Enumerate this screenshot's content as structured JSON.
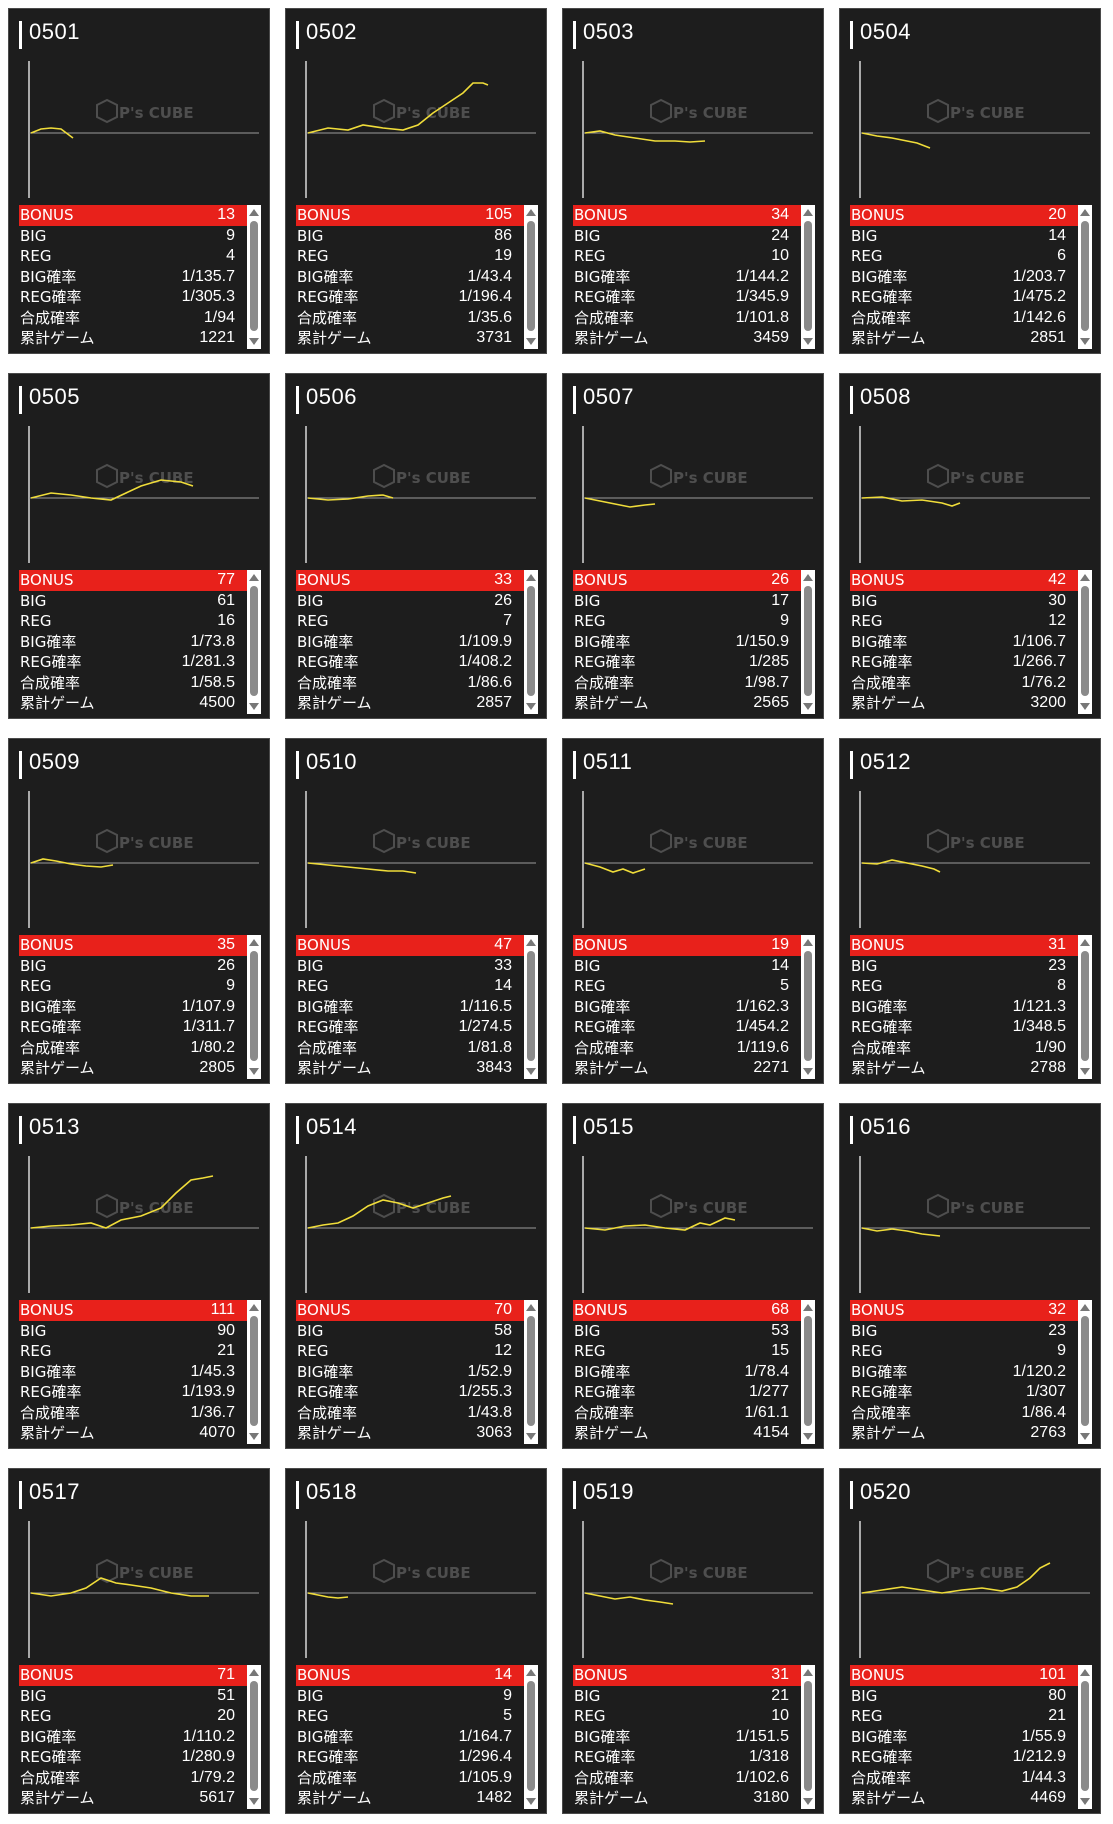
{
  "labels": {
    "bonus": "BONUS",
    "big": "BIG",
    "reg": "REG",
    "big_rate": "BIG確率",
    "reg_rate": "REG確率",
    "combined_rate": "合成確率",
    "total_games": "累計ゲーム"
  },
  "watermark": "P's CUBE",
  "colors": {
    "bonus_bar": "#e8211b",
    "line": "#f0dd3a",
    "card_bg": "#1d1d1d"
  },
  "machines": [
    {
      "id": "0501",
      "bonus": "13",
      "big": "9",
      "reg": "4",
      "big_rate": "1/135.7",
      "reg_rate": "1/305.3",
      "combined_rate": "1/94",
      "total_games": "1221",
      "trend": [
        [
          0,
          0
        ],
        [
          10,
          4
        ],
        [
          20,
          5
        ],
        [
          30,
          4
        ],
        [
          38,
          -2
        ],
        [
          42,
          -5
        ]
      ]
    },
    {
      "id": "0502",
      "bonus": "105",
      "big": "86",
      "reg": "19",
      "big_rate": "1/43.4",
      "reg_rate": "1/196.4",
      "combined_rate": "1/35.6",
      "total_games": "3731",
      "trend": [
        [
          0,
          0
        ],
        [
          20,
          5
        ],
        [
          40,
          3
        ],
        [
          55,
          8
        ],
        [
          75,
          5
        ],
        [
          95,
          3
        ],
        [
          110,
          8
        ],
        [
          125,
          20
        ],
        [
          140,
          30
        ],
        [
          155,
          40
        ],
        [
          165,
          50
        ],
        [
          175,
          50
        ],
        [
          180,
          48
        ]
      ]
    },
    {
      "id": "0503",
      "bonus": "34",
      "big": "24",
      "reg": "10",
      "big_rate": "1/144.2",
      "reg_rate": "1/345.9",
      "combined_rate": "1/101.8",
      "total_games": "3459",
      "trend": [
        [
          0,
          0
        ],
        [
          15,
          2
        ],
        [
          30,
          -2
        ],
        [
          50,
          -5
        ],
        [
          70,
          -8
        ],
        [
          90,
          -8
        ],
        [
          105,
          -9
        ],
        [
          120,
          -8
        ]
      ]
    },
    {
      "id": "0504",
      "bonus": "20",
      "big": "14",
      "reg": "6",
      "big_rate": "1/203.7",
      "reg_rate": "1/475.2",
      "combined_rate": "1/142.6",
      "total_games": "2851",
      "trend": [
        [
          0,
          0
        ],
        [
          15,
          -3
        ],
        [
          30,
          -5
        ],
        [
          45,
          -8
        ],
        [
          55,
          -10
        ],
        [
          68,
          -15
        ]
      ]
    },
    {
      "id": "0505",
      "bonus": "77",
      "big": "61",
      "reg": "16",
      "big_rate": "1/73.8",
      "reg_rate": "1/281.3",
      "combined_rate": "1/58.5",
      "total_games": "4500",
      "trend": [
        [
          0,
          0
        ],
        [
          20,
          5
        ],
        [
          40,
          3
        ],
        [
          60,
          0
        ],
        [
          80,
          -2
        ],
        [
          95,
          5
        ],
        [
          110,
          12
        ],
        [
          130,
          18
        ],
        [
          150,
          16
        ],
        [
          162,
          12
        ]
      ]
    },
    {
      "id": "0506",
      "bonus": "33",
      "big": "26",
      "reg": "7",
      "big_rate": "1/109.9",
      "reg_rate": "1/408.2",
      "combined_rate": "1/86.6",
      "total_games": "2857",
      "trend": [
        [
          0,
          0
        ],
        [
          20,
          -2
        ],
        [
          40,
          -1
        ],
        [
          60,
          2
        ],
        [
          75,
          3
        ],
        [
          85,
          0
        ]
      ]
    },
    {
      "id": "0507",
      "bonus": "26",
      "big": "17",
      "reg": "9",
      "big_rate": "1/150.9",
      "reg_rate": "1/285",
      "combined_rate": "1/98.7",
      "total_games": "2565",
      "trend": [
        [
          0,
          0
        ],
        [
          15,
          -3
        ],
        [
          30,
          -6
        ],
        [
          45,
          -9
        ],
        [
          60,
          -7
        ],
        [
          70,
          -6
        ]
      ]
    },
    {
      "id": "0508",
      "bonus": "42",
      "big": "30",
      "reg": "12",
      "big_rate": "1/106.7",
      "reg_rate": "1/266.7",
      "combined_rate": "1/76.2",
      "total_games": "3200",
      "trend": [
        [
          0,
          0
        ],
        [
          20,
          1
        ],
        [
          40,
          -3
        ],
        [
          60,
          -2
        ],
        [
          80,
          -5
        ],
        [
          90,
          -8
        ],
        [
          98,
          -5
        ]
      ]
    },
    {
      "id": "0509",
      "bonus": "35",
      "big": "26",
      "reg": "9",
      "big_rate": "1/107.9",
      "reg_rate": "1/311.7",
      "combined_rate": "1/80.2",
      "total_games": "2805",
      "trend": [
        [
          0,
          0
        ],
        [
          12,
          4
        ],
        [
          25,
          2
        ],
        [
          40,
          -1
        ],
        [
          55,
          -3
        ],
        [
          70,
          -4
        ],
        [
          82,
          -2
        ]
      ]
    },
    {
      "id": "0510",
      "bonus": "47",
      "big": "33",
      "reg": "14",
      "big_rate": "1/116.5",
      "reg_rate": "1/274.5",
      "combined_rate": "1/81.8",
      "total_games": "3843",
      "trend": [
        [
          0,
          0
        ],
        [
          20,
          -2
        ],
        [
          40,
          -4
        ],
        [
          60,
          -6
        ],
        [
          80,
          -8
        ],
        [
          95,
          -8
        ],
        [
          108,
          -10
        ]
      ]
    },
    {
      "id": "0511",
      "bonus": "19",
      "big": "14",
      "reg": "5",
      "big_rate": "1/162.3",
      "reg_rate": "1/454.2",
      "combined_rate": "1/119.6",
      "total_games": "2271",
      "trend": [
        [
          0,
          0
        ],
        [
          15,
          -4
        ],
        [
          28,
          -9
        ],
        [
          38,
          -6
        ],
        [
          48,
          -10
        ],
        [
          60,
          -6
        ]
      ]
    },
    {
      "id": "0512",
      "bonus": "31",
      "big": "23",
      "reg": "8",
      "big_rate": "1/121.3",
      "reg_rate": "1/348.5",
      "combined_rate": "1/90",
      "total_games": "2788",
      "trend": [
        [
          0,
          0
        ],
        [
          15,
          -1
        ],
        [
          30,
          3
        ],
        [
          45,
          0
        ],
        [
          60,
          -3
        ],
        [
          72,
          -6
        ],
        [
          78,
          -9
        ]
      ]
    },
    {
      "id": "0513",
      "bonus": "111",
      "big": "90",
      "reg": "21",
      "big_rate": "1/45.3",
      "reg_rate": "1/193.9",
      "combined_rate": "1/36.7",
      "total_games": "4070",
      "trend": [
        [
          0,
          0
        ],
        [
          20,
          2
        ],
        [
          40,
          3
        ],
        [
          60,
          5
        ],
        [
          75,
          0
        ],
        [
          90,
          8
        ],
        [
          110,
          12
        ],
        [
          130,
          20
        ],
        [
          145,
          35
        ],
        [
          160,
          48
        ],
        [
          172,
          50
        ],
        [
          182,
          52
        ]
      ]
    },
    {
      "id": "0514",
      "bonus": "70",
      "big": "58",
      "reg": "12",
      "big_rate": "1/52.9",
      "reg_rate": "1/255.3",
      "combined_rate": "1/43.8",
      "total_games": "3063",
      "trend": [
        [
          0,
          0
        ],
        [
          15,
          3
        ],
        [
          30,
          5
        ],
        [
          45,
          12
        ],
        [
          60,
          22
        ],
        [
          75,
          28
        ],
        [
          90,
          25
        ],
        [
          105,
          20
        ],
        [
          120,
          25
        ],
        [
          135,
          30
        ],
        [
          143,
          32
        ]
      ]
    },
    {
      "id": "0515",
      "bonus": "68",
      "big": "53",
      "reg": "15",
      "big_rate": "1/78.4",
      "reg_rate": "1/277",
      "combined_rate": "1/61.1",
      "total_games": "4154",
      "trend": [
        [
          0,
          0
        ],
        [
          20,
          -2
        ],
        [
          40,
          2
        ],
        [
          60,
          3
        ],
        [
          80,
          0
        ],
        [
          100,
          -2
        ],
        [
          115,
          5
        ],
        [
          125,
          3
        ],
        [
          140,
          10
        ],
        [
          150,
          8
        ]
      ]
    },
    {
      "id": "0516",
      "bonus": "32",
      "big": "23",
      "reg": "9",
      "big_rate": "1/120.2",
      "reg_rate": "1/307",
      "combined_rate": "1/86.4",
      "total_games": "2763",
      "trend": [
        [
          0,
          0
        ],
        [
          15,
          -3
        ],
        [
          30,
          -1
        ],
        [
          45,
          -3
        ],
        [
          60,
          -6
        ],
        [
          78,
          -8
        ]
      ]
    },
    {
      "id": "0517",
      "bonus": "71",
      "big": "51",
      "reg": "20",
      "big_rate": "1/110.2",
      "reg_rate": "1/280.9",
      "combined_rate": "1/79.2",
      "total_games": "5617",
      "trend": [
        [
          0,
          0
        ],
        [
          20,
          -3
        ],
        [
          40,
          0
        ],
        [
          55,
          5
        ],
        [
          70,
          15
        ],
        [
          85,
          10
        ],
        [
          100,
          8
        ],
        [
          120,
          5
        ],
        [
          140,
          0
        ],
        [
          160,
          -3
        ],
        [
          178,
          -3
        ]
      ]
    },
    {
      "id": "0518",
      "bonus": "14",
      "big": "9",
      "reg": "5",
      "big_rate": "1/164.7",
      "reg_rate": "1/296.4",
      "combined_rate": "1/105.9",
      "total_games": "1482",
      "trend": [
        [
          0,
          0
        ],
        [
          10,
          -2
        ],
        [
          20,
          -4
        ],
        [
          30,
          -5
        ],
        [
          40,
          -4
        ]
      ]
    },
    {
      "id": "0519",
      "bonus": "31",
      "big": "21",
      "reg": "10",
      "big_rate": "1/151.5",
      "reg_rate": "1/318",
      "combined_rate": "1/102.6",
      "total_games": "3180",
      "trend": [
        [
          0,
          0
        ],
        [
          15,
          -3
        ],
        [
          30,
          -6
        ],
        [
          45,
          -4
        ],
        [
          60,
          -7
        ],
        [
          75,
          -9
        ],
        [
          88,
          -11
        ]
      ]
    },
    {
      "id": "0520",
      "bonus": "101",
      "big": "80",
      "reg": "21",
      "big_rate": "1/55.9",
      "reg_rate": "1/212.9",
      "combined_rate": "1/44.3",
      "total_games": "4469",
      "trend": [
        [
          0,
          0
        ],
        [
          20,
          3
        ],
        [
          40,
          6
        ],
        [
          60,
          3
        ],
        [
          80,
          0
        ],
        [
          100,
          3
        ],
        [
          120,
          5
        ],
        [
          140,
          2
        ],
        [
          155,
          6
        ],
        [
          168,
          15
        ],
        [
          178,
          25
        ],
        [
          188,
          30
        ]
      ]
    }
  ]
}
